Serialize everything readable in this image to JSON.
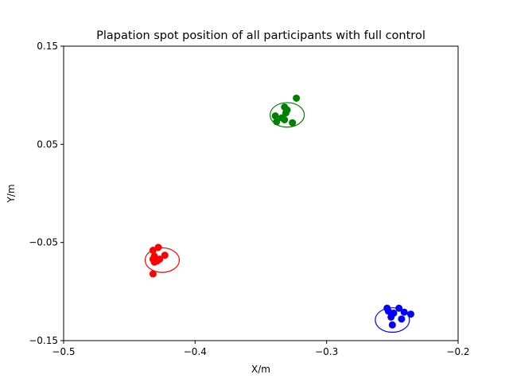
{
  "chart_data": {
    "type": "scatter",
    "title": "Plapation spot position of all participants with full control",
    "xlabel": "X/m",
    "ylabel": "Y/m",
    "xlim": [
      -0.5,
      -0.2
    ],
    "ylim": [
      -0.15,
      0.15
    ],
    "xticks": [
      -0.5,
      -0.4,
      -0.3,
      -0.2
    ],
    "yticks": [
      -0.15,
      -0.05,
      0.05,
      0.15
    ],
    "xtick_labels": [
      "−0.5",
      "−0.4",
      "−0.3",
      "−0.2"
    ],
    "ytick_labels": [
      "−0.15",
      "−0.05",
      "0.05",
      "0.15"
    ],
    "grid": false,
    "series": [
      {
        "color": "#ff0000",
        "points": [
          [
            -0.432,
            -0.058
          ],
          [
            -0.428,
            -0.055
          ],
          [
            -0.423,
            -0.063
          ],
          [
            -0.431,
            -0.064
          ],
          [
            -0.427,
            -0.067
          ],
          [
            -0.432,
            -0.067
          ],
          [
            -0.429,
            -0.069
          ],
          [
            -0.431,
            -0.07
          ],
          [
            -0.432,
            -0.082
          ]
        ],
        "ellipse": {
          "cx": -0.425,
          "cy": -0.068,
          "rx": 0.013,
          "ry": 0.0125
        }
      },
      {
        "color": "#008000",
        "points": [
          [
            -0.323,
            0.097
          ],
          [
            -0.332,
            0.088
          ],
          [
            -0.33,
            0.085
          ],
          [
            -0.331,
            0.082
          ],
          [
            -0.339,
            0.079
          ],
          [
            -0.334,
            0.077
          ],
          [
            -0.332,
            0.075
          ],
          [
            -0.338,
            0.073
          ],
          [
            -0.326,
            0.072
          ]
        ],
        "ellipse": {
          "cx": -0.33,
          "cy": 0.08,
          "rx": 0.013,
          "ry": 0.0125
        }
      },
      {
        "color": "#0000ff",
        "points": [
          [
            -0.254,
            -0.117
          ],
          [
            -0.245,
            -0.117
          ],
          [
            -0.253,
            -0.12
          ],
          [
            -0.241,
            -0.121
          ],
          [
            -0.249,
            -0.122
          ],
          [
            -0.236,
            -0.123
          ],
          [
            -0.251,
            -0.126
          ],
          [
            -0.243,
            -0.128
          ],
          [
            -0.25,
            -0.134
          ]
        ],
        "ellipse": {
          "cx": -0.25,
          "cy": -0.129,
          "rx": 0.013,
          "ry": 0.0125
        }
      }
    ]
  }
}
